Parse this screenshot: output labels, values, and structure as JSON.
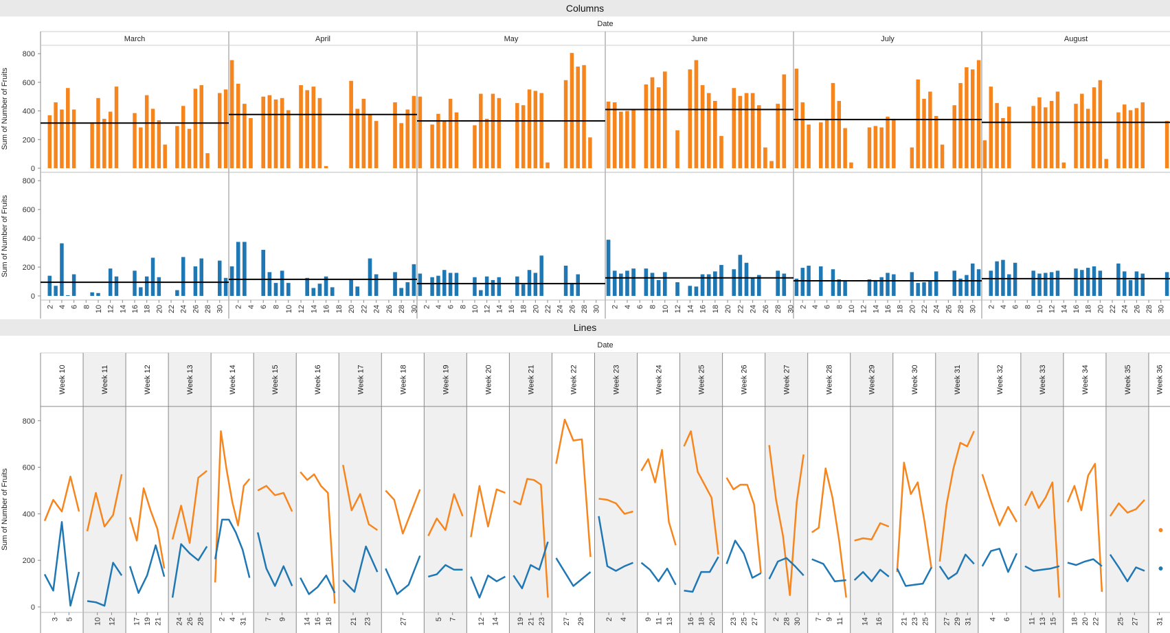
{
  "colors": {
    "orange": "#f7851d",
    "blue": "#1f77b4",
    "ref_line": "#000000",
    "grid_bg": "#f0f0f0",
    "border": "#888888"
  },
  "chart_data": [
    {
      "type": "bar",
      "title": "Columns",
      "column_header": "Date",
      "ylabel": "Sum of Number of Fruits",
      "yticks": [
        0,
        200,
        400,
        600,
        800
      ],
      "ylim": [
        0,
        820
      ],
      "months": [
        "March",
        "April",
        "May",
        "June",
        "July",
        "August"
      ],
      "month_start_days": [
        1,
        1,
        1,
        1,
        1,
        1
      ],
      "month_lengths": [
        31,
        30,
        31,
        30,
        31,
        31
      ],
      "xtick_labels": [
        "2",
        "4",
        "6",
        "8",
        "10",
        "12",
        "14",
        "16",
        "18",
        "20",
        "22",
        "24",
        "26",
        "28",
        "30"
      ],
      "reference_lines": {
        "series_1": [
          315,
          375,
          330,
          410,
          340,
          320
        ],
        "series_2": [
          95,
          115,
          85,
          125,
          105,
          120
        ]
      },
      "series": [
        {
          "color": "orange",
          "values": {
            "March": [
              null,
              370,
              460,
              410,
              560,
              410,
              null,
              null,
              320,
              490,
              345,
              395,
              570,
              null,
              null,
              385,
              285,
              510,
              415,
              335,
              165,
              null,
              295,
              435,
              275,
              555,
              580,
              105,
              null,
              525,
              550
            ],
            "April": [
              755,
              590,
              450,
              350,
              null,
              500,
              510,
              480,
              490,
              405,
              null,
              580,
              545,
              570,
              490,
              15,
              null,
              null,
              null,
              610,
              415,
              485,
              375,
              330,
              null,
              null,
              460,
              315,
              410,
              505
            ],
            "May": [
              500,
              null,
              305,
              380,
              330,
              485,
              390,
              null,
              null,
              300,
              520,
              345,
              520,
              490,
              null,
              null,
              455,
              440,
              550,
              540,
              525,
              40,
              null,
              null,
              615,
              805,
              710,
              720,
              215,
              null,
              null
            ],
            "June": [
              465,
              460,
              395,
              400,
              410,
              null,
              585,
              635,
              565,
              675,
              null,
              265,
              null,
              690,
              755,
              580,
              525,
              470,
              225,
              null,
              560,
              505,
              525,
              525,
              440,
              145,
              50,
              450,
              655,
              null
            ],
            "July": [
              695,
              460,
              305,
              null,
              320,
              345,
              595,
              470,
              280,
              40,
              null,
              null,
              285,
              295,
              285,
              360,
              345,
              null,
              null,
              145,
              620,
              485,
              535,
              365,
              165,
              null,
              440,
              595,
              705,
              690,
              755
            ],
            "August": [
              195,
              570,
              455,
              350,
              430,
              null,
              null,
              null,
              435,
              495,
              425,
              470,
              535,
              40,
              null,
              450,
              520,
              415,
              565,
              615,
              65,
              null,
              390,
              445,
              405,
              420,
              460,
              null,
              null,
              null,
              330
            ]
          }
        },
        {
          "color": "blue",
          "values": {
            "March": [
              null,
              140,
              70,
              365,
              5,
              150,
              null,
              null,
              25,
              20,
              null,
              190,
              135,
              null,
              null,
              175,
              60,
              135,
              265,
              130,
              null,
              null,
              40,
              270,
              null,
              205,
              260,
              null,
              null,
              245,
              125
            ],
            "April": [
              205,
              375,
              375,
              null,
              null,
              320,
              165,
              90,
              175,
              90,
              null,
              null,
              125,
              55,
              85,
              135,
              60,
              null,
              null,
              115,
              65,
              null,
              260,
              150,
              null,
              null,
              165,
              55,
              95,
              220
            ],
            "May": [
              155,
              null,
              130,
              140,
              180,
              160,
              160,
              null,
              null,
              130,
              40,
              135,
              110,
              130,
              null,
              null,
              135,
              80,
              180,
              160,
              280,
              null,
              null,
              null,
              210,
              90,
              150,
              null,
              null,
              null,
              null
            ],
            "June": [
              390,
              175,
              155,
              175,
              190,
              null,
              190,
              160,
              110,
              165,
              null,
              95,
              null,
              70,
              65,
              150,
              150,
              170,
              215,
              null,
              185,
              285,
              230,
              125,
              145,
              null,
              null,
              175,
              155,
              null
            ],
            "July": [
              120,
              195,
              210,
              null,
              205,
              null,
              185,
              115,
              110,
              null,
              null,
              null,
              115,
              110,
              130,
              160,
              150,
              null,
              null,
              165,
              90,
              95,
              100,
              170,
              null,
              null,
              175,
              120,
              145,
              225,
              185
            ],
            "August": [
              null,
              175,
              240,
              250,
              150,
              230,
              null,
              null,
              175,
              155,
              160,
              165,
              175,
              null,
              null,
              190,
              180,
              195,
              205,
              175,
              null,
              null,
              225,
              170,
              110,
              170,
              155,
              null,
              null,
              null,
              165
            ]
          }
        }
      ]
    },
    {
      "type": "line",
      "title": "Lines",
      "column_header": "Date",
      "ylabel": "Sum of Number of Fruits",
      "yticks": [
        0,
        200,
        400,
        600,
        800
      ],
      "ylim": [
        0,
        820
      ],
      "weeks": [
        {
          "label": "Week 10",
          "ticks": [
            "3",
            "5"
          ],
          "orange": [
            370,
            460,
            410,
            560,
            410
          ],
          "blue": [
            140,
            70,
            365,
            5,
            150
          ]
        },
        {
          "label": "Week 11",
          "ticks": [
            "10",
            "12"
          ],
          "orange": [
            325,
            490,
            345,
            395,
            570
          ],
          "blue": [
            25,
            20,
            5,
            190,
            135
          ]
        },
        {
          "label": "Week 12",
          "ticks": [
            "17",
            "19",
            "21"
          ],
          "orange": [
            385,
            285,
            510,
            415,
            335,
            165
          ],
          "blue": [
            175,
            60,
            135,
            265,
            130
          ]
        },
        {
          "label": "Week 13",
          "ticks": [
            "24",
            "26",
            "28"
          ],
          "orange": [
            290,
            435,
            275,
            555,
            585
          ],
          "blue": [
            40,
            270,
            230,
            200,
            260
          ]
        },
        {
          "label": "Week 14",
          "ticks": [
            "2",
            "4",
            "31"
          ],
          "orange": [
            105,
            755,
            590,
            450,
            350,
            520,
            550
          ],
          "blue": [
            205,
            375,
            375,
            320,
            245,
            125
          ]
        },
        {
          "label": "Week 15",
          "ticks": [
            "7",
            "9"
          ],
          "orange": [
            500,
            520,
            480,
            490,
            410
          ],
          "blue": [
            320,
            165,
            90,
            175,
            90
          ]
        },
        {
          "label": "Week 16",
          "ticks": [
            "14",
            "16",
            "18"
          ],
          "orange": [
            580,
            545,
            570,
            520,
            490,
            15
          ],
          "blue": [
            125,
            55,
            85,
            135,
            60
          ]
        },
        {
          "label": "Week 17",
          "ticks": [
            "21",
            "23"
          ],
          "orange": [
            610,
            415,
            485,
            355,
            330
          ],
          "blue": [
            115,
            65,
            260,
            150
          ]
        },
        {
          "label": "Week 18",
          "ticks": [
            "27"
          ],
          "orange": [
            500,
            460,
            315,
            410,
            505
          ],
          "blue": [
            165,
            55,
            95,
            220
          ]
        },
        {
          "label": "Week 19",
          "ticks": [
            "5",
            "7"
          ],
          "orange": [
            305,
            380,
            330,
            485,
            390
          ],
          "blue": [
            130,
            140,
            180,
            160,
            160
          ]
        },
        {
          "label": "Week 20",
          "ticks": [
            "12",
            "14"
          ],
          "orange": [
            300,
            520,
            345,
            505,
            490
          ],
          "blue": [
            130,
            40,
            135,
            110,
            130
          ]
        },
        {
          "label": "Week 21",
          "ticks": [
            "19",
            "21",
            "23"
          ],
          "orange": [
            455,
            440,
            550,
            545,
            525,
            40
          ],
          "blue": [
            135,
            80,
            180,
            160,
            280
          ]
        },
        {
          "label": "Week 22",
          "ticks": [
            "27",
            "29"
          ],
          "orange": [
            615,
            805,
            715,
            720,
            215
          ],
          "blue": [
            210,
            90,
            150
          ]
        },
        {
          "label": "Week 23",
          "ticks": [
            "2",
            "4"
          ],
          "orange": [
            465,
            460,
            445,
            400,
            410
          ],
          "blue": [
            390,
            175,
            155,
            175,
            190
          ]
        },
        {
          "label": "Week 24",
          "ticks": [
            "9",
            "11",
            "13"
          ],
          "orange": [
            585,
            635,
            535,
            675,
            365,
            265
          ],
          "blue": [
            190,
            160,
            110,
            165,
            95
          ]
        },
        {
          "label": "Week 25",
          "ticks": [
            "16",
            "18",
            "20"
          ],
          "orange": [
            690,
            755,
            580,
            525,
            470,
            225
          ],
          "blue": [
            70,
            65,
            150,
            150,
            215
          ]
        },
        {
          "label": "Week 26",
          "ticks": [
            "23",
            "25",
            "27"
          ],
          "orange": [
            555,
            505,
            525,
            525,
            440,
            145
          ],
          "blue": [
            185,
            285,
            230,
            125,
            145
          ]
        },
        {
          "label": "Week 27",
          "ticks": [
            "2",
            "28",
            "30"
          ],
          "orange": [
            695,
            460,
            305,
            50,
            450,
            655
          ],
          "blue": [
            120,
            195,
            210,
            175,
            135
          ]
        },
        {
          "label": "Week 28",
          "ticks": [
            "7",
            "9",
            "11"
          ],
          "orange": [
            320,
            340,
            595,
            470,
            280,
            40
          ],
          "blue": [
            205,
            185,
            110,
            115
          ]
        },
        {
          "label": "Week 29",
          "ticks": [
            "14",
            "16"
          ],
          "orange": [
            285,
            295,
            290,
            360,
            345
          ],
          "blue": [
            115,
            150,
            110,
            160,
            130
          ]
        },
        {
          "label": "Week 30",
          "ticks": [
            "21",
            "23",
            "25"
          ],
          "orange": [
            150,
            620,
            485,
            535,
            365,
            165
          ],
          "blue": [
            165,
            90,
            95,
            100,
            170
          ]
        },
        {
          "label": "Week 31",
          "ticks": [
            "27",
            "29",
            "31"
          ],
          "orange": [
            195,
            440,
            595,
            705,
            690,
            755
          ],
          "blue": [
            175,
            120,
            145,
            225,
            185
          ]
        },
        {
          "label": "Week 32",
          "ticks": [
            "4",
            "6"
          ],
          "orange": [
            570,
            455,
            350,
            430,
            365
          ],
          "blue": [
            175,
            240,
            250,
            150,
            230
          ]
        },
        {
          "label": "Week 33",
          "ticks": [
            "11",
            "13",
            "15"
          ],
          "orange": [
            435,
            495,
            425,
            470,
            535,
            40
          ],
          "blue": [
            175,
            155,
            160,
            165,
            175
          ]
        },
        {
          "label": "Week 34",
          "ticks": [
            "18",
            "20",
            "22"
          ],
          "orange": [
            450,
            520,
            415,
            565,
            615,
            65
          ],
          "blue": [
            190,
            180,
            195,
            205,
            175
          ]
        },
        {
          "label": "Week 35",
          "ticks": [
            "25",
            "27"
          ],
          "orange": [
            390,
            445,
            405,
            420,
            460
          ],
          "blue": [
            225,
            170,
            110,
            170,
            155
          ]
        },
        {
          "label": "Week 36",
          "ticks": [
            "31"
          ],
          "orange": [
            330
          ],
          "blue": [
            165
          ]
        }
      ]
    }
  ]
}
